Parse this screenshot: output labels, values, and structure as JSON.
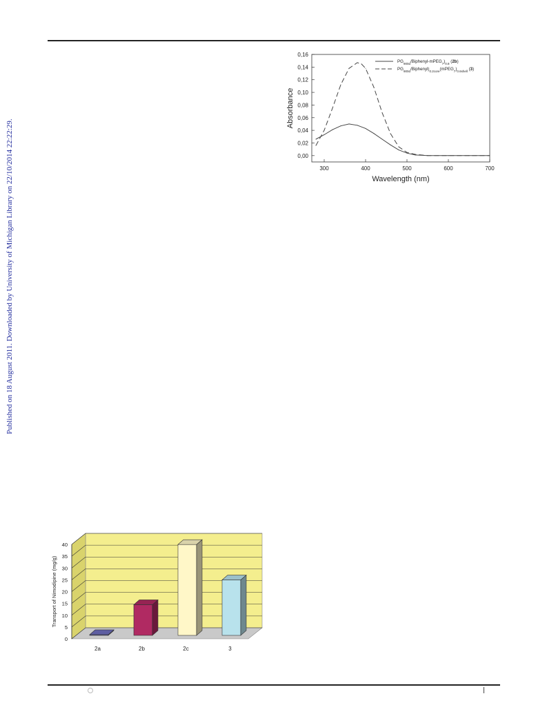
{
  "side_note": "Published on 18 August 2011. Downloaded by University of Michigan Library on 22/10/2014 22:22:29.",
  "chart_data": [
    {
      "type": "line",
      "xlabel": "Wavelength (nm)",
      "ylabel": "Absorbance",
      "xlim": [
        270,
        700
      ],
      "ylim": [
        -0.01,
        0.16
      ],
      "x_ticks": [
        "300",
        "400",
        "500",
        "600",
        "700"
      ],
      "y_ticks": [
        "0,00",
        "0,02",
        "0,04",
        "0,06",
        "0,08",
        "0,10",
        "0,12",
        "0,14",
        "0,16"
      ],
      "legend_position": "top-right",
      "series": [
        {
          "legend": {
            "prefix": "PG",
            "sub1": "900d",
            "mid": "/Biphenyl-mPEG",
            "sub2": "7",
            "mid2": ")",
            "sub3": "0.8",
            "bold": "2b"
          },
          "style": "solid",
          "x": [
            280,
            300,
            320,
            340,
            360,
            380,
            400,
            420,
            440,
            460,
            480,
            500,
            520,
            550,
            600,
            650,
            700
          ],
          "y": [
            0.026,
            0.033,
            0.041,
            0.047,
            0.05,
            0.048,
            0.043,
            0.035,
            0.026,
            0.017,
            0.009,
            0.004,
            0.001,
            0.0,
            0.0,
            0.0,
            0.0
          ]
        },
        {
          "legend": {
            "prefix": "PG",
            "sub1": "900d",
            "mid": "/Biphenyl)",
            "sub2": "0.2core",
            "mid2": "(mPEG",
            "sub3": "7",
            "tail": ")",
            "sub4": "0.6shell",
            "bold": "3"
          },
          "style": "dashed",
          "x": [
            280,
            300,
            320,
            340,
            360,
            380,
            390,
            400,
            420,
            440,
            460,
            480,
            500,
            520,
            550,
            600,
            650,
            700
          ],
          "y": [
            0.016,
            0.04,
            0.075,
            0.112,
            0.138,
            0.147,
            0.145,
            0.138,
            0.108,
            0.068,
            0.035,
            0.014,
            0.005,
            0.002,
            0.0,
            0.0,
            0.0,
            0.0
          ]
        }
      ]
    },
    {
      "type": "bar",
      "ylabel": "Transport of Nimodipine (mg/g)",
      "ylim": [
        0,
        40
      ],
      "y_ticks": [
        "0",
        "5",
        "10",
        "15",
        "20",
        "25",
        "30",
        "35",
        "40"
      ],
      "categories": [
        "2a",
        "2b",
        "2c",
        "3"
      ],
      "values": [
        0.3,
        13,
        38.5,
        23.5
      ],
      "colors": [
        "#6f6fbf",
        "#b02a62",
        "#fff7c8",
        "#b8e2ec"
      ],
      "wall_color": "#f4ee8e",
      "floor_color": "#c9c9c9"
    }
  ]
}
